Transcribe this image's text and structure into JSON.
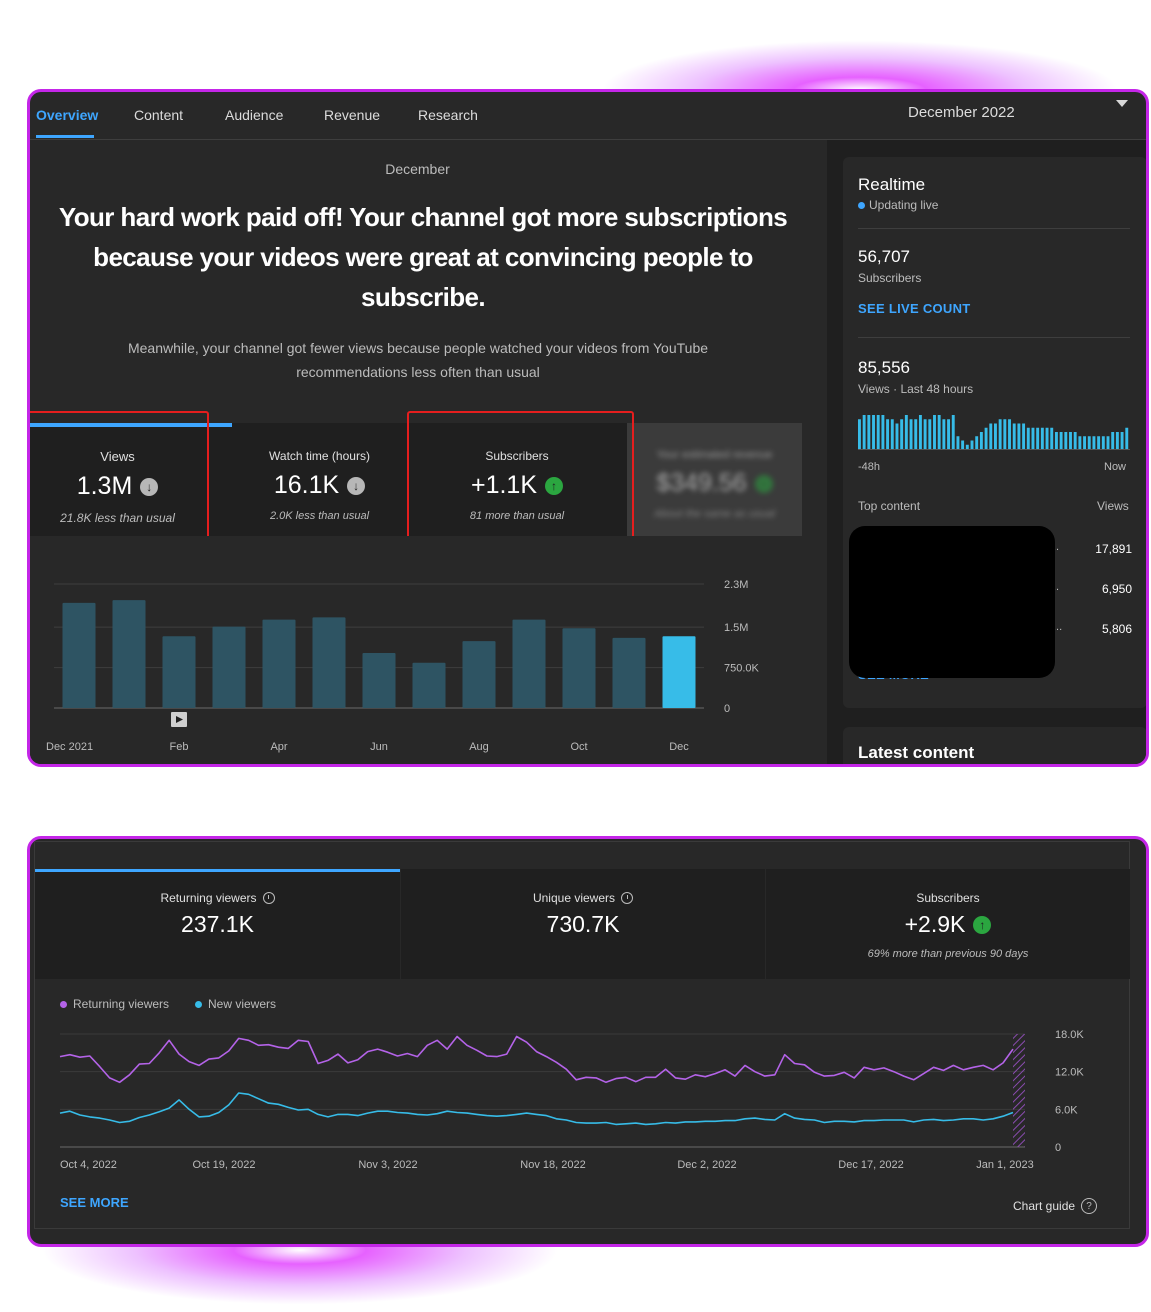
{
  "tabs": [
    "Overview",
    "Content",
    "Audience",
    "Revenue",
    "Research"
  ],
  "period": "December 2022",
  "overview": {
    "month": "December",
    "headline": "Your hard work paid off! Your channel got more subscriptions because your videos were great at convincing people to subscribe.",
    "subtext": "Meanwhile, your channel got fewer views because people watched your videos from YouTube recommendations less often than usual"
  },
  "metrics": [
    {
      "title": "Views",
      "value": "1.3M",
      "trend": "down",
      "sub": "21.8K less than usual"
    },
    {
      "title": "Watch time (hours)",
      "value": "16.1K",
      "trend": "down",
      "sub": "2.0K less than usual"
    },
    {
      "title": "Subscribers",
      "value": "+1.1K",
      "trend": "up",
      "sub": "81 more than usual"
    },
    {
      "title": "Your estimated revenue",
      "value": "$349.56",
      "trend": "neutral",
      "sub": "About the same as usual"
    }
  ],
  "chart_data": [
    {
      "type": "bar",
      "categories": [
        "Dec 2021",
        "Jan",
        "Feb",
        "Mar",
        "Apr",
        "May",
        "Jun",
        "Jul",
        "Aug",
        "Sep",
        "Oct",
        "Nov",
        "Dec"
      ],
      "x_tick_labels": [
        "Dec 2021",
        "Feb",
        "Apr",
        "Jun",
        "Aug",
        "Oct",
        "Dec"
      ],
      "values": [
        1950000,
        2000000,
        1330000,
        1510000,
        1640000,
        1680000,
        1020000,
        840000,
        1240000,
        1640000,
        1480000,
        1300000,
        1330000
      ],
      "ylim": [
        0,
        2300000
      ],
      "y_tick_labels": [
        "2.3M",
        "1.5M",
        "750.0K",
        "0"
      ],
      "highlight_last": true,
      "grid": true
    },
    {
      "type": "bar",
      "title": "",
      "x_tick_labels": [
        "-48h",
        "Now"
      ],
      "values": [
        7,
        8,
        8,
        8,
        8,
        8,
        7,
        7,
        6,
        7,
        8,
        7,
        7,
        8,
        7,
        7,
        8,
        8,
        7,
        7,
        8,
        3,
        2,
        1,
        2,
        3,
        4,
        5,
        6,
        6,
        7,
        7,
        7,
        6,
        6,
        6,
        5,
        5,
        5,
        5,
        5,
        5,
        4,
        4,
        4,
        4,
        4,
        3,
        3,
        3,
        3,
        3,
        3,
        3,
        4,
        4,
        4,
        5
      ],
      "grid": false
    },
    {
      "type": "line",
      "x_tick_labels": [
        "Oct 4, 2022",
        "Oct 19, 2022",
        "Nov 3, 2022",
        "Nov 18, 2022",
        "Dec 2, 2022",
        "Dec 17, 2022",
        "Jan 1, 2023"
      ],
      "y_tick_labels": [
        "18.0K",
        "12.0K",
        "6.0K",
        "0"
      ],
      "ylim": [
        0,
        18000
      ],
      "legend_position": "top-left",
      "series": [
        {
          "name": "Returning viewers",
          "color": "#b463e8",
          "values": [
            14400,
            14700,
            14300,
            14500,
            12800,
            11000,
            10300,
            11500,
            13200,
            13300,
            15000,
            17000,
            14800,
            13600,
            13000,
            14000,
            14200,
            15300,
            17300,
            17000,
            16200,
            16300,
            15900,
            15700,
            17000,
            16800,
            13300,
            13800,
            14800,
            13400,
            13900,
            15200,
            15600,
            15100,
            14500,
            14900,
            14400,
            16200,
            17000,
            15600,
            17600,
            16200,
            15400,
            14500,
            14400,
            14800,
            17600,
            16700,
            15200,
            14400,
            13500,
            12400,
            10700,
            11100,
            11000,
            10300,
            10900,
            11100,
            10400,
            11100,
            11100,
            12400,
            11000,
            10800,
            11500,
            11200,
            11700,
            12300,
            11300,
            13000,
            12000,
            11300,
            11500,
            14700,
            13300,
            13100,
            11900,
            11300,
            11400,
            11900,
            11000,
            12700,
            12300,
            12600,
            12000,
            11300,
            10700,
            11700,
            12700,
            12200,
            13000,
            12300,
            12700,
            13000,
            12300,
            13400,
            15600
          ]
        },
        {
          "name": "New viewers",
          "color": "#37bce8",
          "values": [
            5400,
            5700,
            5100,
            4800,
            4600,
            4300,
            3900,
            4100,
            4700,
            5100,
            5600,
            6200,
            7500,
            6000,
            4800,
            4900,
            5500,
            6700,
            8600,
            8400,
            7700,
            7000,
            6800,
            6300,
            5900,
            6000,
            5200,
            4800,
            5200,
            5200,
            5000,
            5400,
            5700,
            5700,
            5500,
            5400,
            5200,
            5100,
            5300,
            5700,
            5500,
            5400,
            5200,
            5000,
            4900,
            5000,
            5200,
            5400,
            5200,
            5000,
            4500,
            4300,
            3900,
            3800,
            3800,
            3900,
            3600,
            3700,
            3800,
            3600,
            3700,
            3900,
            3800,
            4000,
            4000,
            4100,
            4100,
            4200,
            4200,
            4500,
            4600,
            4400,
            4300,
            5300,
            4600,
            4400,
            4300,
            3900,
            4100,
            4100,
            4000,
            4200,
            4200,
            4300,
            4300,
            4300,
            4000,
            4300,
            4400,
            4200,
            4300,
            4500,
            4500,
            4300,
            4500,
            4900,
            5500
          ]
        }
      ]
    }
  ],
  "realtime": {
    "title": "Realtime",
    "live": "Updating live",
    "subscribers_value": "56,707",
    "subscribers_label": "Subscribers",
    "see_live_count": "SEE LIVE COUNT",
    "views_value": "85,556",
    "views_label": "Views · Last 48 hours",
    "axis_start": "-48h",
    "axis_end": "Now",
    "top_content_label": "Top content",
    "views_col_label": "Views",
    "top_content": [
      {
        "dots": "..",
        "views": "17,891"
      },
      {
        "dots": "..",
        "views": "6,950"
      },
      {
        "dots": "...",
        "views": "5,806"
      }
    ],
    "see_more": "SEE MORE"
  },
  "latest_content": {
    "title": "Latest content"
  },
  "audience": {
    "cards": [
      {
        "title": "Returning viewers",
        "value": "237.1K",
        "has_clock": true,
        "sub": ""
      },
      {
        "title": "Unique viewers",
        "value": "730.7K",
        "has_clock": true,
        "sub": ""
      },
      {
        "title": "Subscribers",
        "value": "+2.9K",
        "has_clock": false,
        "sub": "69% more than previous 90 days"
      }
    ],
    "legend_returning": "Returning viewers",
    "legend_new": "New viewers",
    "see_more": "SEE MORE",
    "chart_guide": "Chart guide"
  },
  "colors": {
    "accent": "#3ea6ff",
    "bar": "#2e5463",
    "bar_highlight": "#37bce8",
    "returning": "#b463e8",
    "new": "#37bce8",
    "up": "#2ba640",
    "frame": "#c426e8",
    "highlight_box": "#e51e1e"
  }
}
